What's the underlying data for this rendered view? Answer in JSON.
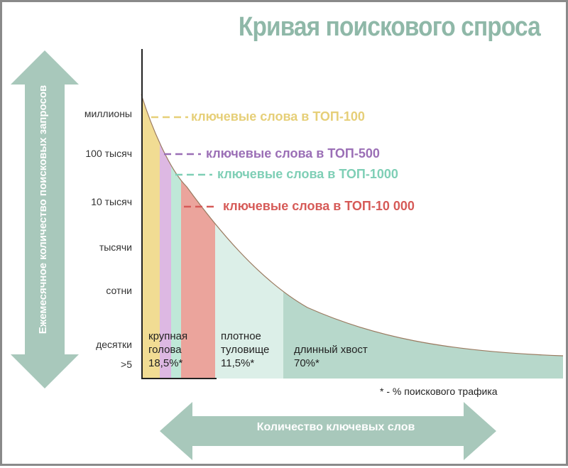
{
  "title": "Кривая поискового спроса",
  "y_axis": {
    "label": "Ежемесячное количество поисковых запросов",
    "ticks": [
      "миллионы",
      "100 тысяч",
      "10 тысяч",
      "тысячи",
      "сотни",
      "десятки",
      ">5"
    ]
  },
  "x_axis": {
    "label": "Количество ключевых слов"
  },
  "keyword_labels": [
    {
      "text": "ключевые слова в ТОП-100",
      "color": "#e6cf78"
    },
    {
      "text": "ключевые слова в ТОП-500",
      "color": "#9b6fb6"
    },
    {
      "text": "ключевые слова в ТОП-1000",
      "color": "#7fcfb6"
    },
    {
      "text": "ключевые слова в ТОП-10 000",
      "color": "#d65b58"
    }
  ],
  "segments": [
    {
      "label": "крупная\nголова\n18,5%*"
    },
    {
      "label": "плотное\nтуловище\n11,5%*"
    },
    {
      "label": "длинный хвост\n70%*"
    }
  ],
  "footnote": "* - % поискового трафика",
  "colors": {
    "arrow": "#a8c8bb",
    "title": "#8fb8a8",
    "top100": "#f1dc93",
    "top500": "#ddb8e3",
    "top1000": "#bfe8d8",
    "top10000": "#eba49c",
    "body": "#dcefe8",
    "tail": "#b7d8cb"
  }
}
